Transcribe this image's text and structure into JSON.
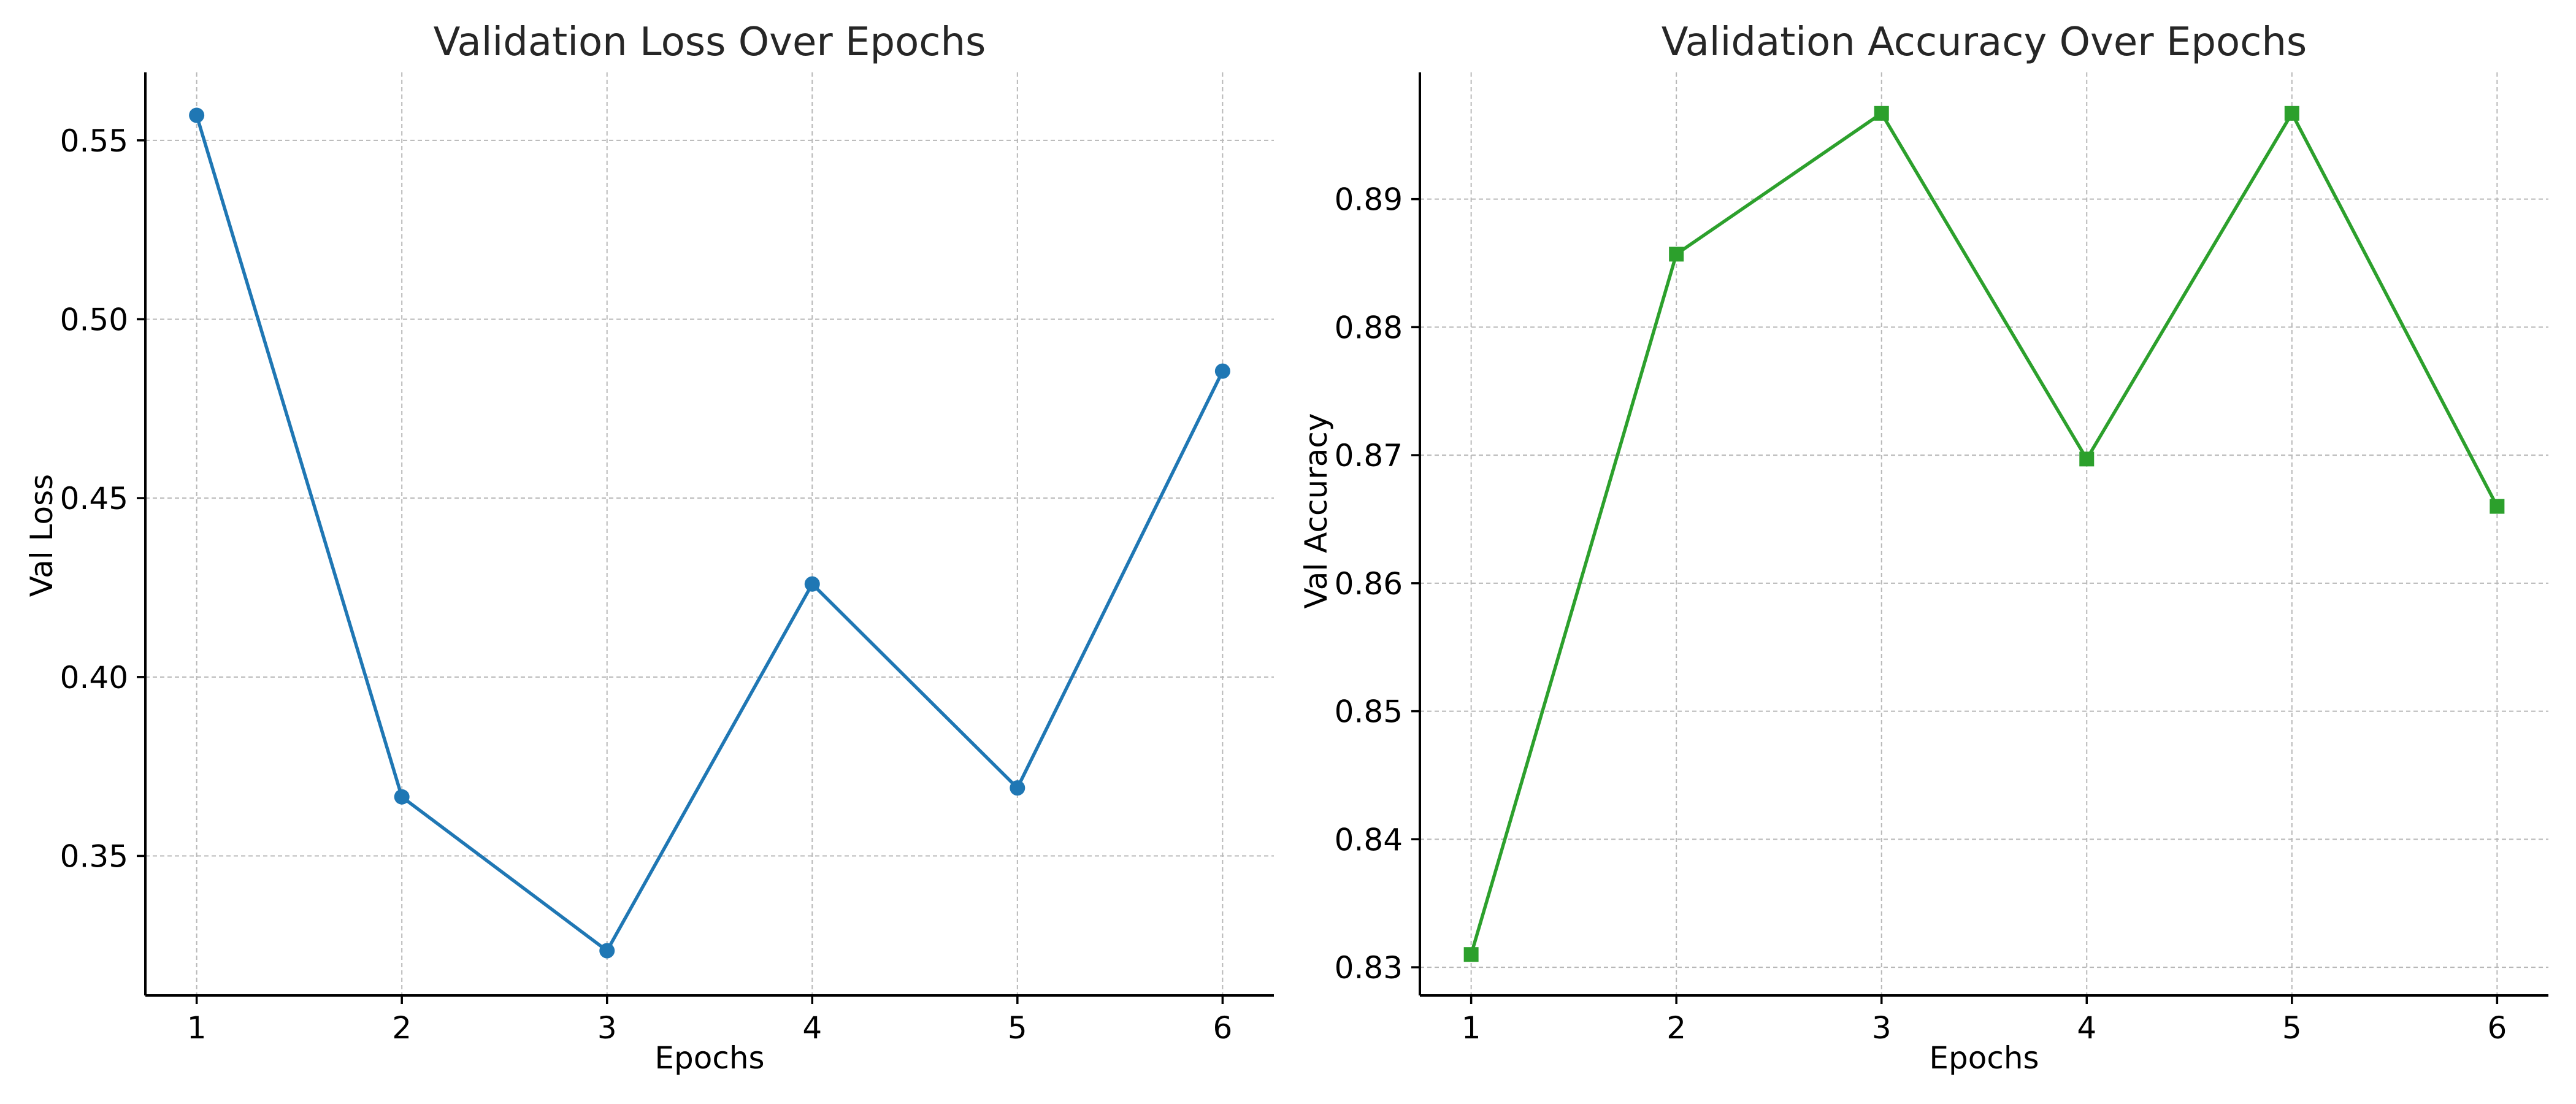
{
  "chart_data": [
    {
      "type": "line",
      "title": "Validation Loss Over Epochs",
      "xlabel": "Epochs",
      "ylabel": "Val Loss",
      "x": [
        1,
        2,
        3,
        4,
        5,
        6
      ],
      "values": [
        0.557,
        0.3665,
        0.3235,
        0.426,
        0.369,
        0.4855
      ],
      "xlim": [
        0.75,
        6.25
      ],
      "ylim": [
        0.311,
        0.569
      ],
      "xticks": [
        "1",
        "2",
        "3",
        "4",
        "5",
        "6"
      ],
      "yticks": [
        "0.35",
        "0.40",
        "0.45",
        "0.50",
        "0.55"
      ],
      "marker": "circle",
      "color": "#1f77b4",
      "grid": true,
      "legend": false
    },
    {
      "type": "line",
      "title": "Validation Accuracy Over Epochs",
      "xlabel": "Epochs",
      "ylabel": "Val Accuracy",
      "x": [
        1,
        2,
        3,
        4,
        5,
        6
      ],
      "values": [
        0.831,
        0.8857,
        0.8967,
        0.8697,
        0.8967,
        0.866
      ],
      "xlim": [
        0.75,
        6.25
      ],
      "ylim": [
        0.8278,
        0.8999
      ],
      "xticks": [
        "1",
        "2",
        "3",
        "4",
        "5",
        "6"
      ],
      "yticks": [
        "0.83",
        "0.84",
        "0.85",
        "0.86",
        "0.87",
        "0.88",
        "0.89"
      ],
      "marker": "square",
      "color": "#2ca02c",
      "grid": true,
      "legend": false
    }
  ]
}
